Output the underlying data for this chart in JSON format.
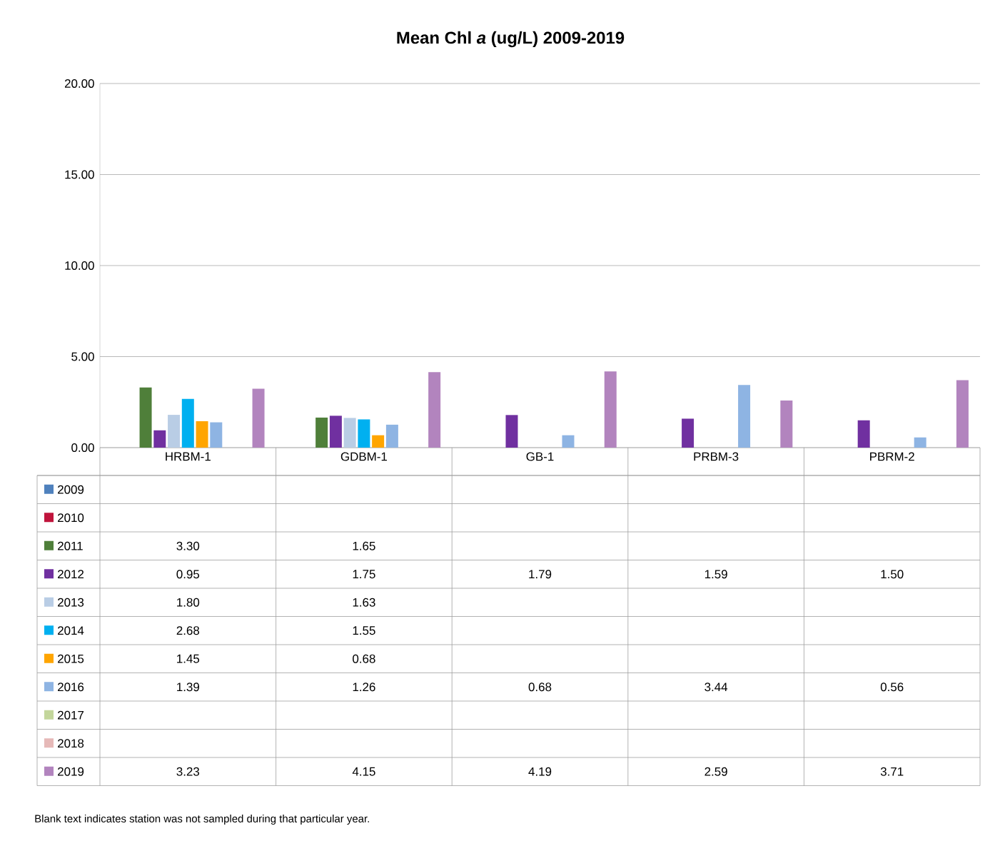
{
  "chart_data": {
    "type": "bar",
    "title": "Mean Chl *a* (ug/L) 2009-2019",
    "categories": [
      "HRBM-1",
      "GDBM-1",
      "GB-1",
      "PRBM-3",
      "PBRM-2"
    ],
    "ylim": [
      0,
      20
    ],
    "yticks": [
      {
        "value": 0,
        "label": "0.00"
      },
      {
        "value": 5,
        "label": "5.00"
      },
      {
        "value": 10,
        "label": "10.00"
      },
      {
        "value": 15,
        "label": "15.00"
      },
      {
        "value": 20,
        "label": "20.00"
      }
    ],
    "grid": "y",
    "legend": "bottom",
    "series": [
      {
        "name": "2009",
        "color": "#4f81bd",
        "values": [
          null,
          null,
          null,
          null,
          null
        ],
        "value_labels": [
          null,
          null,
          null,
          null,
          null
        ]
      },
      {
        "name": "2010",
        "color": "#c0143c",
        "values": [
          null,
          null,
          null,
          null,
          null
        ],
        "value_labels": [
          null,
          null,
          null,
          null,
          null
        ]
      },
      {
        "name": "2011",
        "color": "#4f7f3a",
        "values": [
          3.3,
          1.65,
          null,
          null,
          null
        ],
        "value_labels": [
          "3.30",
          "1.65",
          null,
          null,
          null
        ]
      },
      {
        "name": "2012",
        "color": "#7030a0",
        "values": [
          0.95,
          1.75,
          1.79,
          1.59,
          1.5
        ],
        "value_labels": [
          "0.95",
          "1.75",
          "1.79",
          "1.59",
          "1.50"
        ]
      },
      {
        "name": "2013",
        "color": "#b9cde5",
        "values": [
          1.8,
          1.63,
          null,
          null,
          null
        ],
        "value_labels": [
          "1.80",
          "1.63",
          null,
          null,
          null
        ]
      },
      {
        "name": "2014",
        "color": "#00b0f0",
        "values": [
          2.68,
          1.55,
          null,
          null,
          null
        ],
        "value_labels": [
          "2.68",
          "1.55",
          null,
          null,
          null
        ]
      },
      {
        "name": "2015",
        "color": "#ffa500",
        "values": [
          1.45,
          0.68,
          null,
          null,
          null
        ],
        "value_labels": [
          "1.45",
          "0.68",
          null,
          null,
          null
        ]
      },
      {
        "name": "2016",
        "color": "#8eb4e3",
        "values": [
          1.39,
          1.26,
          0.68,
          3.44,
          0.56
        ],
        "value_labels": [
          "1.39",
          "1.26",
          "0.68",
          "3.44",
          "0.56"
        ]
      },
      {
        "name": "2017",
        "color": "#c3d69b",
        "values": [
          null,
          null,
          null,
          null,
          null
        ],
        "value_labels": [
          null,
          null,
          null,
          null,
          null
        ]
      },
      {
        "name": "2018",
        "color": "#e6b9b8",
        "values": [
          null,
          null,
          null,
          null,
          null
        ],
        "value_labels": [
          null,
          null,
          null,
          null,
          null
        ]
      },
      {
        "name": "2019",
        "color": "#b284be",
        "values": [
          3.23,
          4.15,
          4.19,
          2.59,
          3.71
        ],
        "value_labels": [
          "3.23",
          "4.15",
          "4.19",
          "2.59",
          "3.71"
        ]
      }
    ],
    "annotations": [
      "Blank text indicates station was not sampled during that particular year."
    ]
  }
}
